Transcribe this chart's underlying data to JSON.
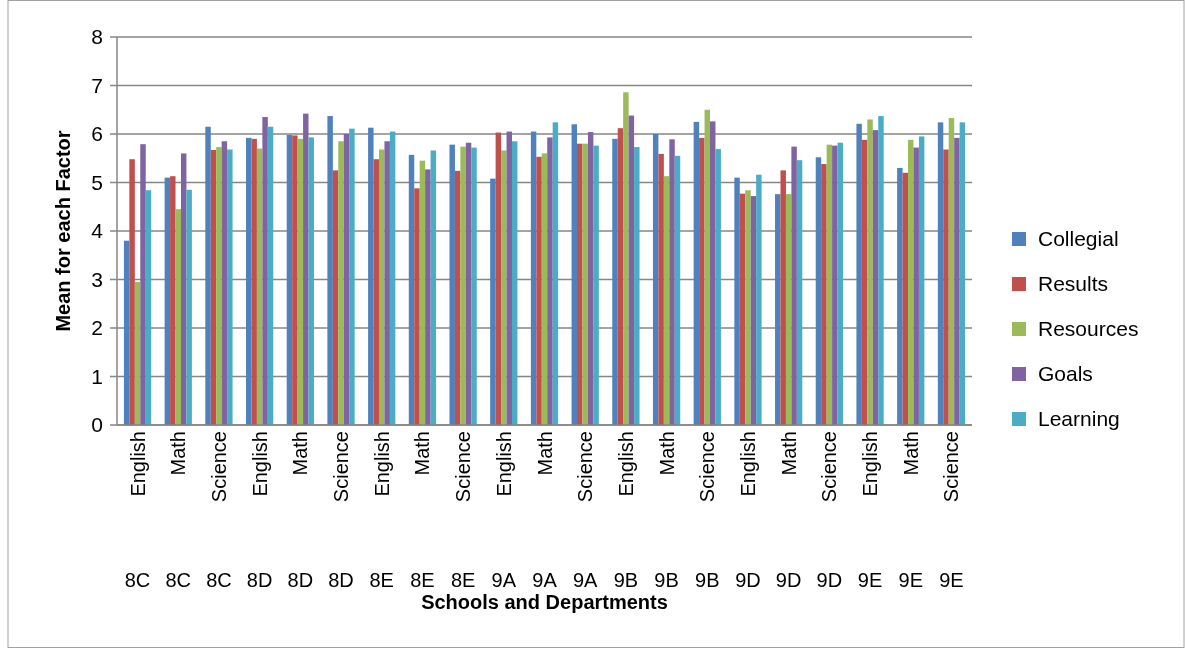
{
  "chart_data": {
    "type": "bar",
    "annotations": [
      "Schools and Departments"
    ],
    "ylabel": "Mean for each Factor",
    "categories": [
      "English 8C",
      "Math 8C",
      "Science 8C",
      "English 8D",
      "Math 8D",
      "Science 8D",
      "English 8E",
      "Math 8E",
      "Science 8E",
      "English 9A",
      "Math 9A",
      "Science 9A",
      "English 9B",
      "Math 9B",
      "Science 9B",
      "English 9D",
      "Math 9D",
      "Science 9D",
      "English 9E",
      "Math 9E",
      "Science 9E"
    ],
    "series": [
      {
        "name": "Collegial",
        "color": "#4f81bd",
        "values": [
          3.8,
          5.1,
          6.15,
          5.92,
          5.98,
          6.37,
          6.13,
          5.57,
          5.78,
          5.08,
          6.05,
          6.2,
          5.9,
          6.0,
          6.25,
          5.1,
          4.76,
          5.52,
          6.21,
          5.3,
          6.24
        ]
      },
      {
        "name": "Results",
        "color": "#c0504d",
        "values": [
          5.48,
          5.13,
          5.67,
          5.9,
          5.97,
          5.25,
          5.48,
          4.88,
          5.24,
          6.03,
          5.53,
          5.8,
          6.12,
          5.59,
          5.92,
          4.77,
          5.25,
          5.38,
          5.88,
          5.2,
          5.68
        ]
      },
      {
        "name": "Resources",
        "color": "#9bbb59",
        "values": [
          2.95,
          4.45,
          5.73,
          5.7,
          5.9,
          5.85,
          5.68,
          5.45,
          5.74,
          5.66,
          5.6,
          5.8,
          6.86,
          5.13,
          6.5,
          4.84,
          4.76,
          5.78,
          6.3,
          5.88,
          6.33
        ]
      },
      {
        "name": "Goals",
        "color": "#8064a2",
        "values": [
          5.79,
          5.6,
          5.85,
          6.35,
          6.42,
          6.0,
          5.85,
          5.27,
          5.82,
          6.05,
          5.93,
          6.04,
          6.38,
          5.89,
          6.26,
          4.72,
          5.74,
          5.76,
          6.08,
          5.72,
          5.92
        ]
      },
      {
        "name": "Learning",
        "color": "#4bacc6",
        "values": [
          4.84,
          4.85,
          5.68,
          6.15,
          5.93,
          6.11,
          6.05,
          5.66,
          5.72,
          5.85,
          6.24,
          5.76,
          5.73,
          5.55,
          5.69,
          5.16,
          5.46,
          5.82,
          6.37,
          5.95,
          6.24
        ]
      }
    ],
    "ylim": [
      0,
      8
    ],
    "yticks": [
      0,
      1,
      2,
      3,
      4,
      5,
      6,
      7,
      8
    ],
    "grid": "y",
    "legend": "right"
  }
}
